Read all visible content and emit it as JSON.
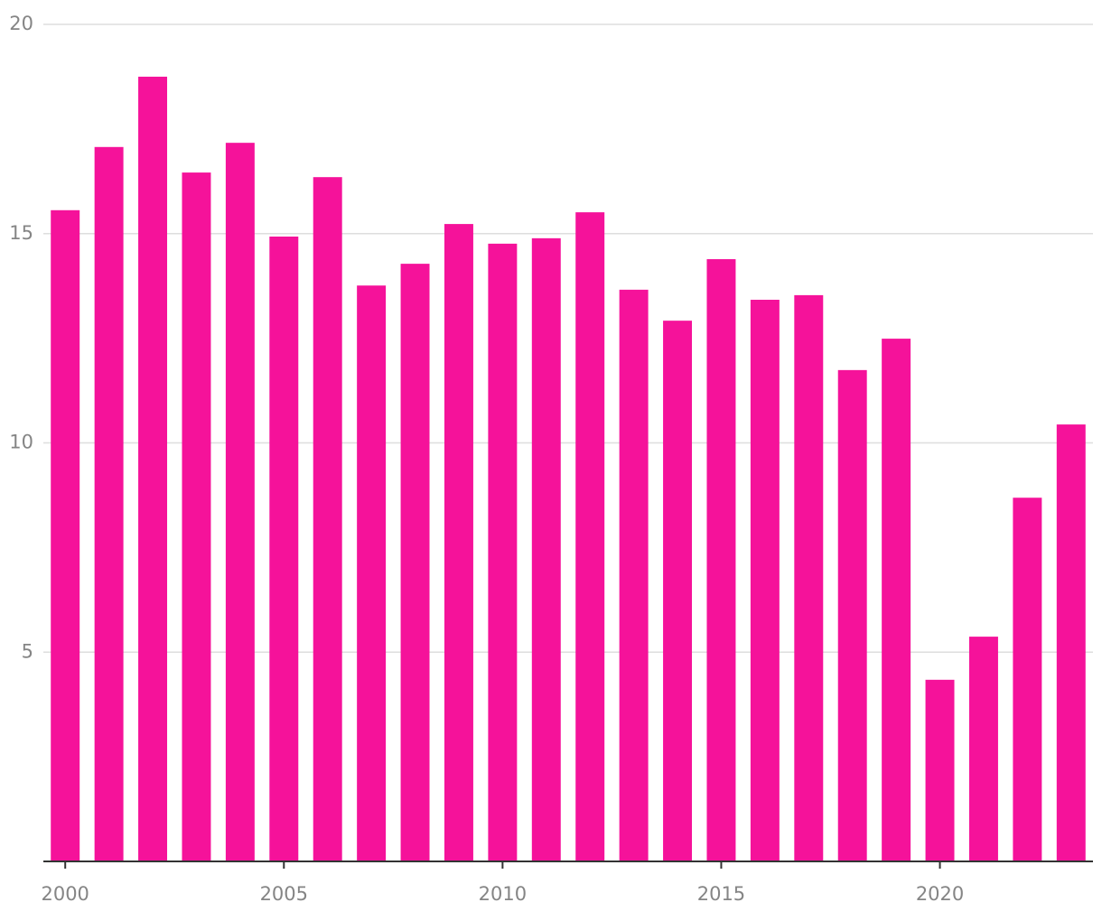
{
  "chart_data": {
    "type": "bar",
    "x": [
      2000,
      2001,
      2002,
      2003,
      2004,
      2005,
      2006,
      2007,
      2008,
      2009,
      2010,
      2011,
      2012,
      2013,
      2014,
      2015,
      2016,
      2017,
      2018,
      2019,
      2020,
      2021,
      2022,
      2023
    ],
    "values": [
      15.56,
      17.07,
      18.75,
      16.46,
      17.17,
      14.93,
      16.35,
      13.76,
      14.28,
      15.23,
      14.76,
      14.89,
      15.51,
      13.66,
      12.92,
      14.39,
      13.42,
      13.53,
      11.74,
      12.49,
      4.34,
      5.37,
      8.69,
      10.44
    ],
    "color": "#f5129a",
    "xlim": [
      1999.5,
      2023.5
    ],
    "xticks": [
      2000,
      2005,
      2010,
      2015,
      2020
    ],
    "ylim": [
      0,
      20
    ],
    "yticks": [
      5,
      10,
      15,
      20
    ],
    "grid": true
  }
}
